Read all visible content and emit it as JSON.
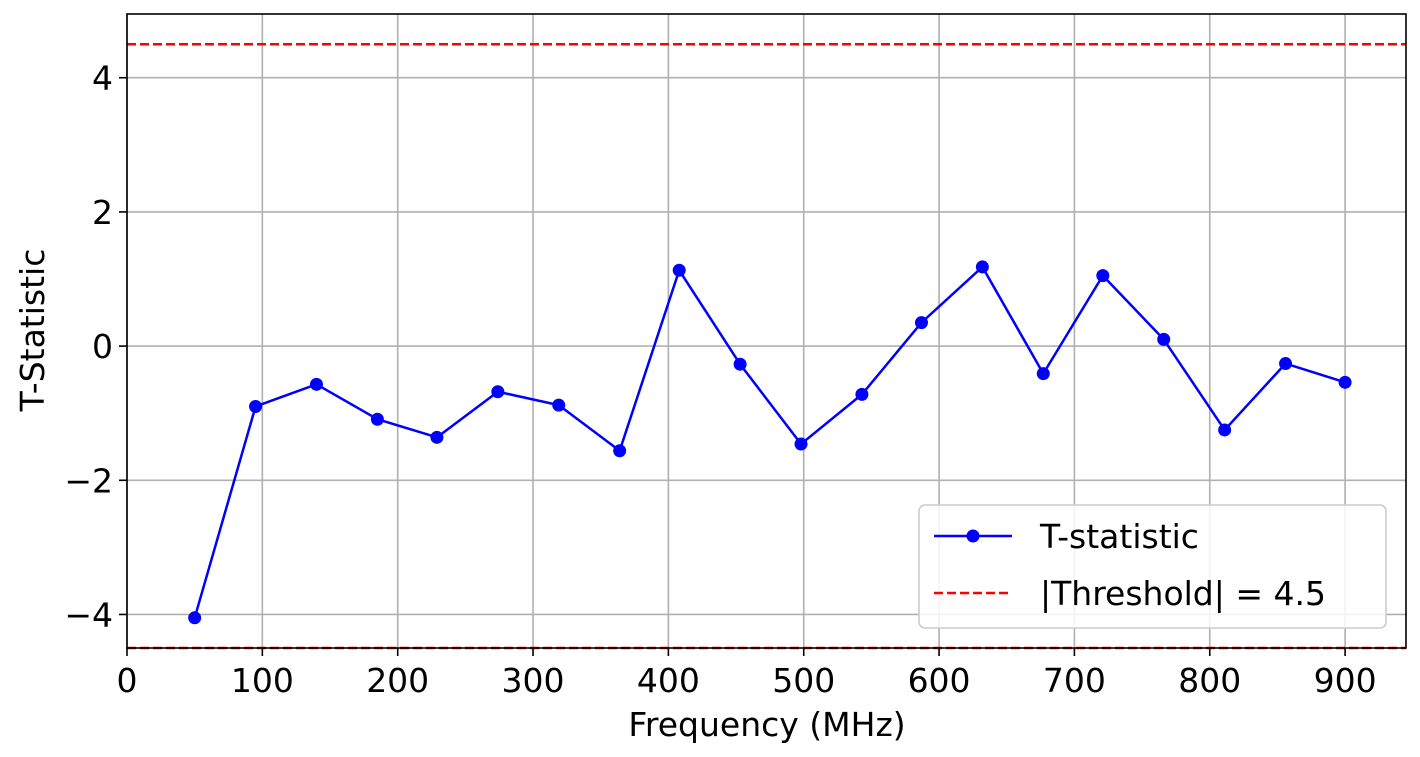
{
  "chart_data": {
    "type": "line",
    "title": "",
    "xlabel": "Frequency (MHz)",
    "ylabel": "T-Statistic",
    "xlim": [
      0,
      945
    ],
    "ylim": [
      -4.5,
      4.95
    ],
    "grid": true,
    "legend_position": "lower-right",
    "x_ticks": [
      0,
      100,
      200,
      300,
      400,
      500,
      600,
      700,
      800,
      900
    ],
    "x_tick_labels": [
      "0",
      "100",
      "200",
      "300",
      "400",
      "500",
      "600",
      "700",
      "800",
      "900"
    ],
    "y_ticks": [
      -4,
      -2,
      0,
      2,
      4
    ],
    "y_tick_labels": [
      "−4",
      "−2",
      "0",
      "2",
      "4"
    ],
    "series": [
      {
        "name": "T-statistic",
        "color": "#0000ff",
        "marker": "circle",
        "x": [
          50,
          95,
          140,
          185,
          229,
          274,
          319,
          364,
          408,
          453,
          498,
          543,
          587,
          632,
          677,
          721,
          766,
          811,
          856,
          900
        ],
        "y": [
          -4.05,
          -0.9,
          -0.57,
          -1.09,
          -1.36,
          -0.68,
          -0.88,
          -1.56,
          1.13,
          -0.27,
          -1.46,
          -0.72,
          0.35,
          1.18,
          -0.41,
          1.05,
          0.1,
          -1.25,
          -0.26,
          -0.54
        ]
      }
    ],
    "threshold": {
      "name": "|Threshold| = 4.5",
      "value": 4.5,
      "color": "#ff0000",
      "style": "dashed"
    }
  }
}
